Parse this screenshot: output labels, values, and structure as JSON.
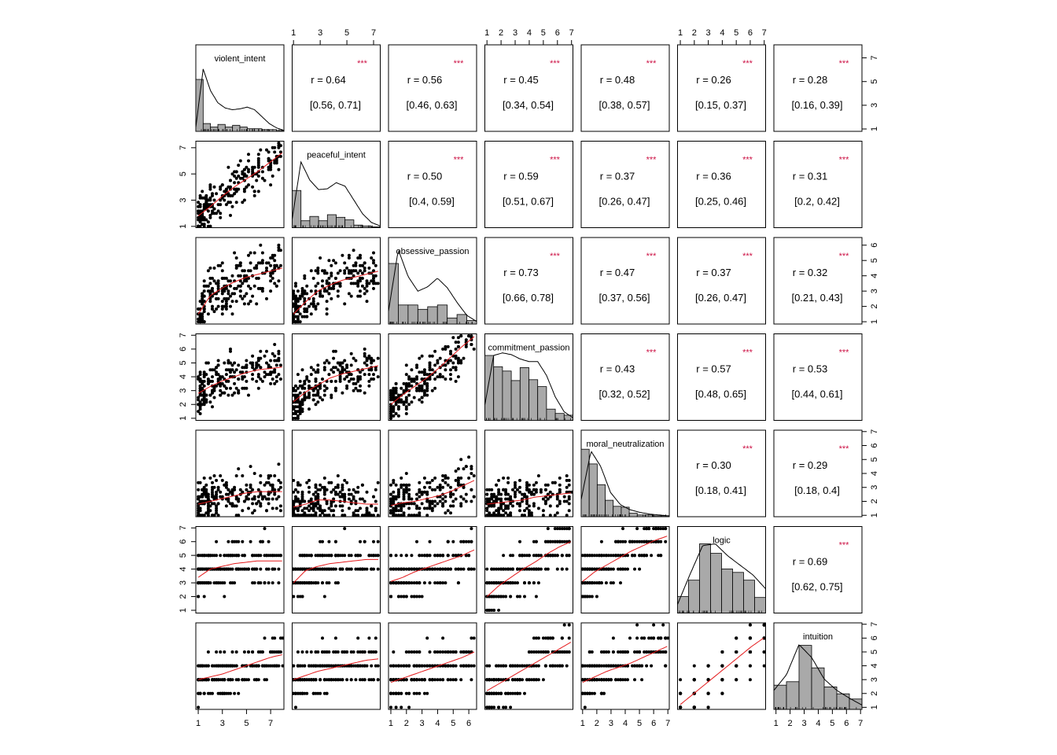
{
  "chart_data": {
    "type": "scatter-matrix",
    "title": "",
    "variables": [
      "violent_intent",
      "peaceful_intent",
      "obsessive_passion",
      "commitment_passion",
      "moral_neutralization",
      "logic",
      "intuition"
    ],
    "ranges": [
      [
        0.8,
        8.1
      ],
      [
        0.9,
        7.5
      ],
      [
        0.85,
        6.5
      ],
      [
        0.85,
        7.1
      ],
      [
        0.9,
        7.1
      ],
      [
        0.8,
        7.1
      ],
      [
        0.85,
        7.1
      ]
    ],
    "ticks": [
      [
        "1",
        "3",
        "5",
        "7"
      ],
      [
        "1",
        "3",
        "5",
        "7"
      ],
      [
        "1",
        "2",
        "3",
        "4",
        "5",
        "6"
      ],
      [
        "1",
        "2",
        "3",
        "4",
        "5",
        "6",
        "7"
      ],
      [
        "1",
        "2",
        "3",
        "4",
        "5",
        "6",
        "7"
      ],
      [
        "1",
        "2",
        "3",
        "4",
        "5",
        "6",
        "7"
      ],
      [
        "1",
        "2",
        "3",
        "4",
        "5",
        "6",
        "7"
      ]
    ],
    "correlations": [
      {
        "row": 0,
        "col": 1,
        "r": "r = 0.64",
        "ci": "[0.56, 0.71]",
        "sig": "***"
      },
      {
        "row": 0,
        "col": 2,
        "r": "r = 0.56",
        "ci": "[0.46, 0.63]",
        "sig": "***"
      },
      {
        "row": 0,
        "col": 3,
        "r": "r = 0.45",
        "ci": "[0.34, 0.54]",
        "sig": "***"
      },
      {
        "row": 0,
        "col": 4,
        "r": "r = 0.48",
        "ci": "[0.38, 0.57]",
        "sig": "***"
      },
      {
        "row": 0,
        "col": 5,
        "r": "r = 0.26",
        "ci": "[0.15, 0.37]",
        "sig": "***"
      },
      {
        "row": 0,
        "col": 6,
        "r": "r = 0.28",
        "ci": "[0.16, 0.39]",
        "sig": "***"
      },
      {
        "row": 1,
        "col": 2,
        "r": "r = 0.50",
        "ci": "[0.4, 0.59]",
        "sig": "***"
      },
      {
        "row": 1,
        "col": 3,
        "r": "r = 0.59",
        "ci": "[0.51, 0.67]",
        "sig": "***"
      },
      {
        "row": 1,
        "col": 4,
        "r": "r = 0.37",
        "ci": "[0.26, 0.47]",
        "sig": "***"
      },
      {
        "row": 1,
        "col": 5,
        "r": "r = 0.36",
        "ci": "[0.25, 0.46]",
        "sig": "***"
      },
      {
        "row": 1,
        "col": 6,
        "r": "r = 0.31",
        "ci": "[0.2, 0.42]",
        "sig": "***"
      },
      {
        "row": 2,
        "col": 3,
        "r": "r = 0.73",
        "ci": "[0.66, 0.78]",
        "sig": "***"
      },
      {
        "row": 2,
        "col": 4,
        "r": "r = 0.47",
        "ci": "[0.37, 0.56]",
        "sig": "***"
      },
      {
        "row": 2,
        "col": 5,
        "r": "r = 0.37",
        "ci": "[0.26, 0.47]",
        "sig": "***"
      },
      {
        "row": 2,
        "col": 6,
        "r": "r = 0.32",
        "ci": "[0.21, 0.43]",
        "sig": "***"
      },
      {
        "row": 3,
        "col": 4,
        "r": "r = 0.43",
        "ci": "[0.32, 0.52]",
        "sig": "***"
      },
      {
        "row": 3,
        "col": 5,
        "r": "r = 0.57",
        "ci": "[0.48, 0.65]",
        "sig": "***"
      },
      {
        "row": 3,
        "col": 6,
        "r": "r = 0.53",
        "ci": "[0.44, 0.61]",
        "sig": "***"
      },
      {
        "row": 4,
        "col": 5,
        "r": "r = 0.30",
        "ci": "[0.18, 0.41]",
        "sig": "***"
      },
      {
        "row": 4,
        "col": 6,
        "r": "r = 0.29",
        "ci": "[0.18, 0.4]",
        "sig": "***"
      },
      {
        "row": 5,
        "col": 6,
        "r": "r = 0.69",
        "ci": "[0.62, 0.75]",
        "sig": "***"
      }
    ],
    "histograms": [
      [
        0.6,
        0.09,
        0.05,
        0.08,
        0.05,
        0.07,
        0.05,
        0.03,
        0.03,
        0.02,
        0.02,
        0.01
      ],
      [
        0.43,
        0.08,
        0.13,
        0.08,
        0.15,
        0.12,
        0.09,
        0.03,
        0.02,
        0.01
      ],
      [
        0.7,
        0.22,
        0.22,
        0.17,
        0.2,
        0.22,
        0.07,
        0.11,
        0.04
      ],
      [
        0.75,
        0.62,
        0.57,
        0.46,
        0.61,
        0.47,
        0.39,
        0.13,
        0.08,
        0.06
      ],
      [
        0.78,
        0.61,
        0.37,
        0.19,
        0.12,
        0.11,
        0.04,
        0.02,
        0.02,
        0.01,
        0.01
      ],
      [
        0.19,
        0.38,
        0.8,
        0.69,
        0.51,
        0.47,
        0.38,
        0.18
      ],
      [
        0.28,
        0.32,
        0.74,
        0.48,
        0.26,
        0.18,
        0.12
      ]
    ],
    "densities": [
      [
        0.05,
        0.72,
        0.47,
        0.33,
        0.27,
        0.25,
        0.26,
        0.28,
        0.25,
        0.17,
        0.09,
        0.04,
        0.01
      ],
      [
        0.1,
        0.76,
        0.55,
        0.44,
        0.45,
        0.52,
        0.48,
        0.32,
        0.16,
        0.06,
        0.02
      ],
      [
        0.15,
        0.86,
        0.55,
        0.38,
        0.43,
        0.53,
        0.42,
        0.25,
        0.1,
        0.03
      ],
      [
        0.18,
        0.75,
        0.78,
        0.76,
        0.71,
        0.68,
        0.68,
        0.52,
        0.27,
        0.1,
        0.03
      ],
      [
        0.2,
        0.76,
        0.58,
        0.28,
        0.14,
        0.08,
        0.05,
        0.03,
        0.02,
        0.01
      ],
      [
        0.1,
        0.45,
        0.78,
        0.8,
        0.66,
        0.55,
        0.44,
        0.28
      ],
      [
        0.22,
        0.4,
        0.75,
        0.6,
        0.35,
        0.22,
        0.13,
        0.05
      ]
    ],
    "loess_trends": [
      {
        "row": 1,
        "col": 0,
        "y": [
          1.8,
          2.5,
          3.3,
          4.0,
          4.6,
          5.2,
          5.9,
          6.6
        ]
      },
      {
        "row": 2,
        "col": 0,
        "y": [
          1.5,
          2.7,
          3.2,
          3.6,
          3.9,
          4.1,
          4.3,
          4.5
        ]
      },
      {
        "row": 2,
        "col": 1,
        "y": [
          1.5,
          2.3,
          3.0,
          3.4,
          3.7,
          3.9,
          4.1,
          4.3
        ]
      },
      {
        "row": 3,
        "col": 0,
        "y": [
          2.8,
          3.3,
          3.7,
          4.0,
          4.3,
          4.5,
          4.6,
          4.7
        ]
      },
      {
        "row": 3,
        "col": 1,
        "y": [
          2.2,
          2.9,
          3.4,
          3.9,
          4.2,
          4.4,
          4.6,
          4.8
        ]
      },
      {
        "row": 3,
        "col": 2,
        "y": [
          2.0,
          2.7,
          3.3,
          3.9,
          4.6,
          5.4,
          6.2,
          6.9
        ]
      },
      {
        "row": 4,
        "col": 0,
        "y": [
          1.8,
          2.0,
          2.2,
          2.4,
          2.6,
          2.7,
          2.7,
          2.7
        ]
      },
      {
        "row": 4,
        "col": 1,
        "y": [
          1.6,
          1.8,
          2.1,
          2.1,
          2.0,
          1.9,
          1.8,
          1.8
        ]
      },
      {
        "row": 4,
        "col": 2,
        "y": [
          1.7,
          1.9,
          2.0,
          2.2,
          2.4,
          2.7,
          3.1,
          3.5
        ]
      },
      {
        "row": 4,
        "col": 3,
        "y": [
          1.8,
          1.9,
          2.0,
          2.1,
          2.3,
          2.4,
          2.5,
          2.6
        ]
      },
      {
        "row": 5,
        "col": 0,
        "y": [
          3.4,
          4.0,
          4.2,
          4.4,
          4.5,
          4.6,
          4.6,
          4.6
        ]
      },
      {
        "row": 5,
        "col": 1,
        "y": [
          3.0,
          3.9,
          4.2,
          4.4,
          4.5,
          4.6,
          4.7,
          4.7
        ]
      },
      {
        "row": 5,
        "col": 2,
        "y": [
          3.1,
          3.4,
          3.8,
          4.1,
          4.4,
          4.7,
          5.0,
          5.4
        ]
      },
      {
        "row": 5,
        "col": 3,
        "y": [
          2.0,
          2.8,
          3.4,
          4.0,
          4.5,
          5.1,
          5.6,
          6.0
        ]
      },
      {
        "row": 5,
        "col": 4,
        "y": [
          3.1,
          3.8,
          4.3,
          4.8,
          5.3,
          5.7,
          6.1,
          6.4
        ]
      },
      {
        "row": 6,
        "col": 0,
        "y": [
          3.0,
          3.2,
          3.4,
          3.7,
          4.0,
          4.3,
          4.6,
          4.8
        ]
      },
      {
        "row": 6,
        "col": 1,
        "y": [
          3.0,
          3.3,
          3.6,
          3.8,
          4.0,
          4.2,
          4.4,
          4.5
        ]
      },
      {
        "row": 6,
        "col": 2,
        "y": [
          2.8,
          3.1,
          3.4,
          3.7,
          4.0,
          4.3,
          4.6,
          5.0
        ]
      },
      {
        "row": 6,
        "col": 3,
        "y": [
          2.2,
          2.7,
          3.2,
          3.7,
          4.2,
          4.7,
          5.2,
          5.7
        ]
      },
      {
        "row": 6,
        "col": 4,
        "y": [
          2.8,
          3.2,
          3.6,
          3.9,
          4.2,
          4.6,
          5.0,
          5.4
        ]
      },
      {
        "row": 6,
        "col": 5,
        "y": [
          1.2,
          1.9,
          2.6,
          3.3,
          4.0,
          4.7,
          5.4,
          6.0
        ]
      }
    ]
  }
}
